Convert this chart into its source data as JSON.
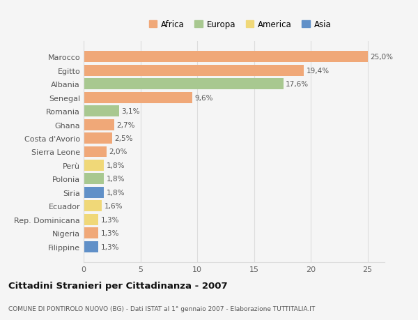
{
  "categories": [
    "Marocco",
    "Egitto",
    "Albania",
    "Senegal",
    "Romania",
    "Ghana",
    "Costa d'Avorio",
    "Sierra Leone",
    "Perù",
    "Polonia",
    "Siria",
    "Ecuador",
    "Rep. Dominicana",
    "Nigeria",
    "Filippine"
  ],
  "values": [
    25.0,
    19.4,
    17.6,
    9.6,
    3.1,
    2.7,
    2.5,
    2.0,
    1.8,
    1.8,
    1.8,
    1.6,
    1.3,
    1.3,
    1.3
  ],
  "labels": [
    "25,0%",
    "19,4%",
    "17,6%",
    "9,6%",
    "3,1%",
    "2,7%",
    "2,5%",
    "2,0%",
    "1,8%",
    "1,8%",
    "1,8%",
    "1,6%",
    "1,3%",
    "1,3%",
    "1,3%"
  ],
  "continents": [
    "Africa",
    "Africa",
    "Europa",
    "Africa",
    "Europa",
    "Africa",
    "Africa",
    "Africa",
    "America",
    "Europa",
    "Asia",
    "America",
    "America",
    "Africa",
    "Asia"
  ],
  "colors": {
    "Africa": "#F0A878",
    "Europa": "#A8C890",
    "America": "#F0D878",
    "Asia": "#6090C8"
  },
  "legend_order": [
    "Africa",
    "Europa",
    "America",
    "Asia"
  ],
  "xlim": [
    0,
    26.5
  ],
  "xticks": [
    0,
    5,
    10,
    15,
    20,
    25
  ],
  "title": "Cittadini Stranieri per Cittadinanza - 2007",
  "subtitle": "COMUNE DI PONTIROLO NUOVO (BG) - Dati ISTAT al 1° gennaio 2007 - Elaborazione TUTTITALIA.IT",
  "bg_color": "#F5F5F5",
  "grid_color": "#DDDDDD",
  "bar_height": 0.82
}
